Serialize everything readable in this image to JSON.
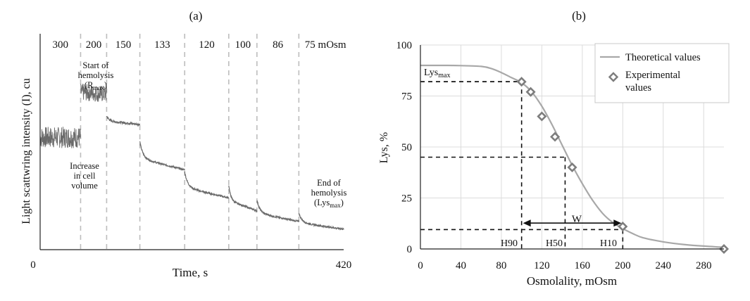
{
  "chart_data": [
    {
      "type": "line",
      "panel_label": "(a)",
      "xlabel": "Time, s",
      "ylabel": "Light scattwring intensity (I), cu",
      "x_ticks": [
        "0",
        "420"
      ],
      "xlim": [
        0,
        420
      ],
      "segment_labels": [
        "300",
        "200",
        "150",
        "133",
        "120",
        "100",
        "86",
        "75 mOsm"
      ],
      "segment_boundaries_s": [
        0,
        56,
        92,
        138,
        200,
        261,
        300,
        358,
        420
      ],
      "segment_levels": [
        {
          "start": 0.52,
          "end": 0.52,
          "noise": 0.05
        },
        {
          "start": 0.73,
          "end": 0.72,
          "noise": 0.04
        },
        {
          "start": 0.62,
          "end": 0.58,
          "noise": 0.005
        },
        {
          "start": 0.5,
          "end": 0.37,
          "noise": 0.004
        },
        {
          "start": 0.36,
          "end": 0.24,
          "noise": 0.004
        },
        {
          "start": 0.3,
          "end": 0.18,
          "noise": 0.004
        },
        {
          "start": 0.23,
          "end": 0.13,
          "noise": 0.004
        },
        {
          "start": 0.17,
          "end": 0.095,
          "noise": 0.004
        }
      ],
      "annotations": [
        {
          "lines": [
            "Start of",
            "hemolysis",
            "(R",
            "max",
            ")"
          ]
        },
        {
          "lines": [
            "Increase",
            "in cell",
            "volume"
          ]
        },
        {
          "lines": [
            "End of",
            "hemolysis",
            "(Lys",
            "max",
            ")"
          ]
        }
      ]
    },
    {
      "type": "line",
      "panel_label": "(b)",
      "xlabel": "Osmolality, mOsm",
      "ylabel": "Lys, %",
      "xlim": [
        0,
        300
      ],
      "ylim": [
        0,
        100
      ],
      "x_ticks": [
        0,
        40,
        80,
        120,
        160,
        200,
        240,
        280
      ],
      "y_ticks": [
        0,
        25,
        50,
        75,
        100
      ],
      "grid": true,
      "legend_position": "top-right",
      "series": [
        {
          "name": "Theoretical values",
          "color": "#a8a8a8",
          "x": [
            0,
            20,
            40,
            60,
            70,
            80,
            90,
            100,
            110,
            120,
            130,
            140,
            150,
            160,
            170,
            180,
            190,
            200,
            210,
            220,
            240,
            260,
            280,
            300
          ],
          "y": [
            90,
            90,
            89.9,
            89.5,
            88.5,
            86.5,
            84,
            81.5,
            77,
            70,
            61,
            51,
            41,
            32,
            24,
            17.5,
            13,
            10,
            7.5,
            5.5,
            3.5,
            2.2,
            1.4,
            0.8
          ]
        },
        {
          "name": "Experimental values",
          "legend_lines": [
            "Experimental",
            "values"
          ],
          "marker": "diamond",
          "color": "#7d7d7d",
          "x": [
            100,
            109,
            120,
            133,
            150,
            200,
            300
          ],
          "y": [
            82,
            77,
            65,
            55,
            40,
            11,
            0
          ]
        }
      ],
      "reference_lines": [
        {
          "label": "Lys",
          "label_sub": "max",
          "y": 82,
          "x": 100
        },
        {
          "label": "H90",
          "x": 100,
          "y": 82
        },
        {
          "label": "H50",
          "x": 143,
          "y": 45
        },
        {
          "label": "H10",
          "x": 200,
          "y": 9.5
        }
      ],
      "width_arrow": {
        "label": "W",
        "x1": 100,
        "x2": 200,
        "y": 12
      }
    }
  ]
}
